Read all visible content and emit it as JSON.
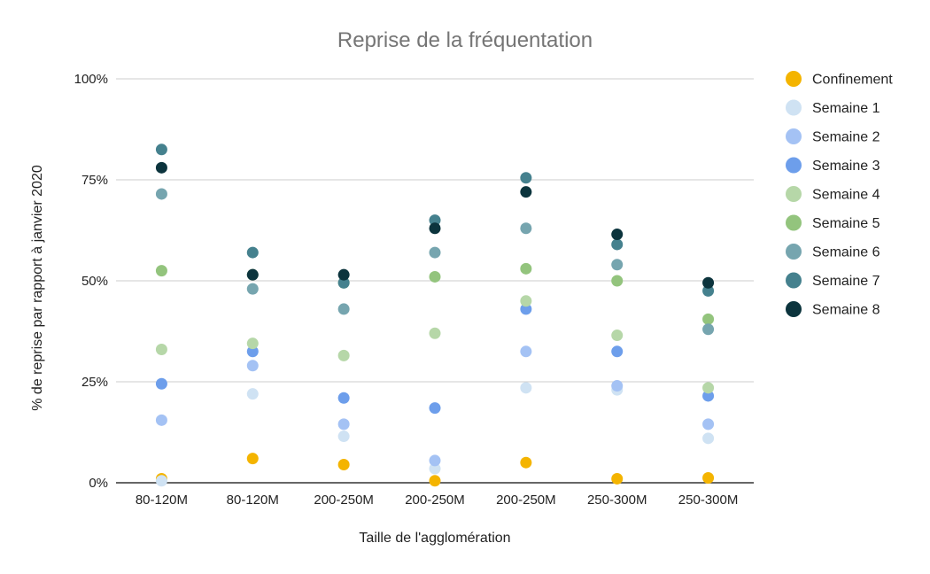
{
  "chart_data": {
    "type": "scatter",
    "title": "Reprise de la fréquentation",
    "xlabel": "Taille de l'agglomération",
    "ylabel": "% de reprise par rapport à janvier 2020",
    "categories": [
      "80-120M",
      "80-120M",
      "200-250M",
      "200-250M",
      "200-250M",
      "250-300M",
      "250-300M"
    ],
    "y_ticks": [
      "0%",
      "25%",
      "50%",
      "75%",
      "100%"
    ],
    "ylim": [
      0,
      100
    ],
    "grid": true,
    "legend_position": "right",
    "series": [
      {
        "name": "Confinement",
        "color": "#f4b400",
        "values": [
          1,
          6,
          4.5,
          0.5,
          5,
          1,
          1.2
        ]
      },
      {
        "name": "Semaine 1",
        "color": "#cfe2f3",
        "values": [
          0.5,
          22,
          11.5,
          3.5,
          23.5,
          23,
          11
        ]
      },
      {
        "name": "Semaine 2",
        "color": "#a4c2f4",
        "values": [
          15.5,
          29,
          14.5,
          5.5,
          32.5,
          24,
          14.5
        ]
      },
      {
        "name": "Semaine 3",
        "color": "#6d9eeb",
        "values": [
          24.5,
          32.5,
          21,
          18.5,
          43,
          32.5,
          21.5
        ]
      },
      {
        "name": "Semaine 4",
        "color": "#b6d7a8",
        "values": [
          33,
          34.5,
          31.5,
          37,
          45,
          36.5,
          23.5
        ]
      },
      {
        "name": "Semaine 5",
        "color": "#93c47d",
        "values": [
          52.5,
          51.5,
          49.5,
          51,
          53,
          50,
          40.5
        ]
      },
      {
        "name": "Semaine 6",
        "color": "#76a5af",
        "values": [
          71.5,
          48,
          43,
          57,
          63,
          54,
          38
        ]
      },
      {
        "name": "Semaine 7",
        "color": "#45818e",
        "values": [
          82.5,
          57,
          49.5,
          65,
          75.5,
          59,
          47.5
        ]
      },
      {
        "name": "Semaine 8",
        "color": "#0c343d",
        "values": [
          78,
          51.5,
          51.5,
          63,
          72,
          61.5,
          49.5
        ]
      }
    ]
  }
}
